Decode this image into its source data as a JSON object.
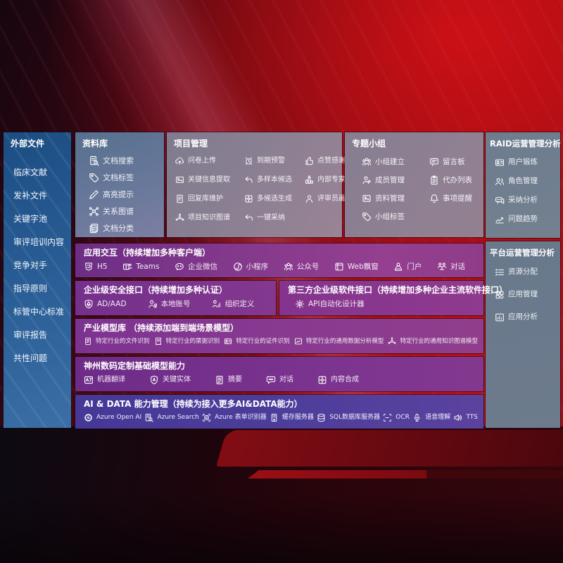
{
  "palette": {
    "background_red": "#b81117",
    "background_dark": "#17060f",
    "sidebar_blue": "#2a5f97",
    "grey_panel": "#8d8093",
    "grey_blue_panel": "#6d7b8c",
    "purple_row": "#84398c",
    "indigo_row": "#4d3d9b",
    "text": "#ffffff"
  },
  "board": {
    "sidebar": {
      "title": "外部文件",
      "items": [
        {
          "label": "临床文献"
        },
        {
          "label": "发补文件"
        },
        {
          "label": "关键字池"
        },
        {
          "label": "审评培训内容"
        },
        {
          "label": "竞争对手"
        },
        {
          "label": "指导原则"
        },
        {
          "label": "标管中心标准"
        },
        {
          "label": "审评报告"
        },
        {
          "label": "共性问题"
        }
      ]
    },
    "repo": {
      "title": "资料库",
      "items": [
        {
          "label": "文档搜索",
          "icon": "doc-search"
        },
        {
          "label": "文档标签",
          "icon": "tag"
        },
        {
          "label": "高亮提示",
          "icon": "highlight-pen"
        },
        {
          "label": "关系图谱",
          "icon": "relation-graph"
        },
        {
          "label": "文档分类",
          "icon": "doc-classify"
        }
      ]
    },
    "project": {
      "title": "项目管理",
      "items": [
        {
          "label": "问卷上传",
          "icon": "cloud-upload"
        },
        {
          "label": "到期预警",
          "icon": "alarm"
        },
        {
          "label": "点赞感谢",
          "icon": "thumbs-up"
        },
        {
          "label": "关键信息提取",
          "icon": "info-extract"
        },
        {
          "label": "多样本候选",
          "icon": "reply-arrow"
        },
        {
          "label": "内部专家排名",
          "icon": "ranking"
        },
        {
          "label": "回复库维护",
          "icon": "edit-pen"
        },
        {
          "label": "多候选生成",
          "icon": "puzzle"
        },
        {
          "label": "评审员画像",
          "icon": "person"
        },
        {
          "label": "项目知识图谱",
          "icon": "knowledge-graph"
        },
        {
          "label": "一键采纳",
          "icon": "adopt-arrow"
        }
      ]
    },
    "groups": {
      "title": "专题小组",
      "items": [
        {
          "label": "小组建立",
          "icon": "team"
        },
        {
          "label": "留言板",
          "icon": "bbs"
        },
        {
          "label": "成员管理",
          "icon": "member-manage"
        },
        {
          "label": "代办列表",
          "icon": "todo-list"
        },
        {
          "label": "资料管理",
          "icon": "material-manage"
        },
        {
          "label": "事项提醒",
          "icon": "bell"
        },
        {
          "label": "小组标签",
          "icon": "tag"
        }
      ]
    },
    "raid": {
      "title": "RAID运营管理分析",
      "items": [
        {
          "label": "用户锻炼",
          "icon": "user-card"
        },
        {
          "label": "角色管理",
          "icon": "roles"
        },
        {
          "label": "采纳分析",
          "icon": "qa-chat"
        },
        {
          "label": "问题趋势",
          "icon": "trend-chart"
        }
      ]
    },
    "platform": {
      "title": "平台运营管理分析",
      "items": [
        {
          "label": "资源分配",
          "icon": "resource-list"
        },
        {
          "label": "应用管理",
          "icon": "app-grid"
        },
        {
          "label": "应用分析",
          "icon": "app-chart"
        }
      ]
    },
    "interaction": {
      "title": "应用交互（持续增加多种客户端）",
      "items": [
        {
          "label": "H5",
          "icon": "h5"
        },
        {
          "label": "Teams",
          "icon": "teams"
        },
        {
          "label": "企业微信",
          "icon": "wecom"
        },
        {
          "label": "小程序",
          "icon": "miniprogram"
        },
        {
          "label": "公众号",
          "icon": "official-account"
        },
        {
          "label": "Web飘窗",
          "icon": "web-window"
        },
        {
          "label": "门户",
          "icon": "portal"
        },
        {
          "label": "对话",
          "icon": "dialog"
        }
      ]
    },
    "security": {
      "title": "企业级安全接口（持续增加多种认证）",
      "items": [
        {
          "label": "AD/AAD",
          "icon": "ad-shield"
        },
        {
          "label": "本地账号",
          "icon": "local-account"
        },
        {
          "label": "组织定义",
          "icon": "org-define"
        }
      ]
    },
    "thirdparty": {
      "title": "第三方企业级软件接口（持续增加多种企业主流软件接口）",
      "items": [
        {
          "label": "API自动化设计器",
          "icon": "api-gear"
        }
      ]
    },
    "industry": {
      "title": "产业模型库 （持续添加端到端场景模型）",
      "items": [
        {
          "label": "特定行业的文件识别",
          "icon": "file-recognize"
        },
        {
          "label": "特定行业的票据识别",
          "icon": "invoice-recognize"
        },
        {
          "label": "特定行业的证件识别",
          "icon": "id-recognize"
        },
        {
          "label": "特定行业的通用数据分析模型",
          "icon": "data-model"
        },
        {
          "label": "特定行业的通用知识图谱模型",
          "icon": "kg-model"
        }
      ]
    },
    "basemodel": {
      "title": "神州数码定制基础模型能力",
      "items": [
        {
          "label": "机器翻译",
          "icon": "translate"
        },
        {
          "label": "关键实体",
          "icon": "entity-shield"
        },
        {
          "label": "摘要",
          "icon": "summary-doc"
        },
        {
          "label": "对话",
          "icon": "chat-bubble"
        },
        {
          "label": "内容合成",
          "icon": "compose"
        }
      ]
    },
    "aidata": {
      "title": "AI & DATA 能力管理（持续为接入更多AI&DATA能力）",
      "items": [
        {
          "label": "Azure Open AI",
          "icon": "openai"
        },
        {
          "label": "Azure Search",
          "icon": "azure-search"
        },
        {
          "label": "Azure 表单识别器",
          "icon": "form-recognizer"
        },
        {
          "label": "缓存服务器",
          "icon": "cache-server"
        },
        {
          "label": "SQL数据库服务器",
          "icon": "sql-database"
        },
        {
          "label": "OCR",
          "icon": "ocr"
        },
        {
          "label": "语音理解",
          "icon": "speech"
        },
        {
          "label": "TTS",
          "icon": "tts"
        }
      ]
    }
  }
}
